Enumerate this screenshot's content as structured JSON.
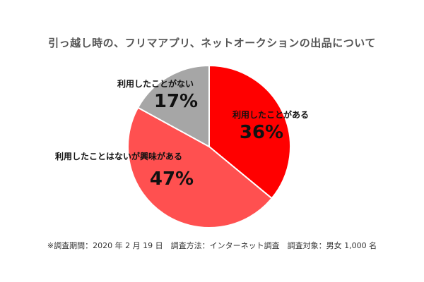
{
  "chart_data": {
    "type": "pie",
    "title": "引っ越し時の、フリマアプリ、ネットオークションの出品について",
    "slices": [
      {
        "label": "利用したことがある",
        "value": 36,
        "display": "36%",
        "color": "#ff0000"
      },
      {
        "label": "利用したことはないが興味がある",
        "value": 47,
        "display": "47%",
        "color": "#ff5050"
      },
      {
        "label": "利用したことがない",
        "value": 17,
        "display": "17%",
        "color": "#a6a6a6"
      }
    ]
  },
  "footnote": "※調査期間：2020 年 2 月 19 日　調査方法：インターネット調査　調査対象：男女 1,000 名"
}
